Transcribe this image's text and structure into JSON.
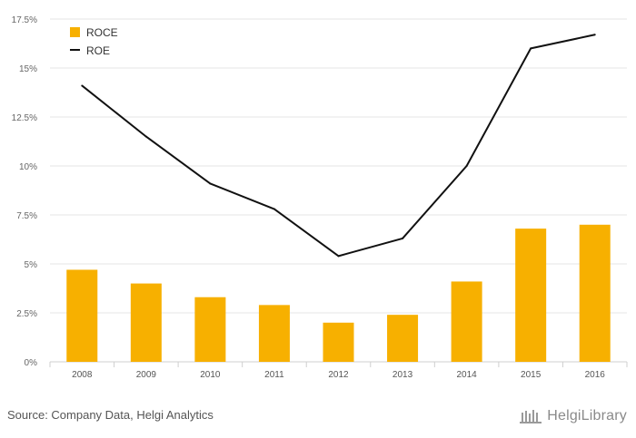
{
  "chart_data": {
    "type": "bar",
    "title": "",
    "xlabel": "",
    "ylabel": "",
    "categories": [
      "2008",
      "2009",
      "2010",
      "2011",
      "2012",
      "2013",
      "2014",
      "2015",
      "2016"
    ],
    "ylim": [
      0,
      17.5
    ],
    "yticks": [
      "0%",
      "2.5%",
      "5%",
      "7.5%",
      "10%",
      "12.5%",
      "15%",
      "17.5%"
    ],
    "ytick_values": [
      0,
      2.5,
      5,
      7.5,
      10,
      12.5,
      15,
      17.5
    ],
    "grid": true,
    "legend_position": "top-left",
    "series": [
      {
        "name": "ROCE",
        "type": "bar",
        "color": "#f7b000",
        "values": [
          4.7,
          4.0,
          3.3,
          2.9,
          2.0,
          2.4,
          4.1,
          6.8,
          7.0
        ]
      },
      {
        "name": "ROE",
        "type": "line",
        "color": "#111111",
        "values": [
          14.1,
          11.5,
          9.1,
          7.8,
          5.4,
          6.3,
          10.0,
          16.0,
          16.7
        ]
      }
    ]
  },
  "footer": {
    "source": "Source: Company Data, Helgi Analytics",
    "logo_text": "HelgiLibrary"
  }
}
